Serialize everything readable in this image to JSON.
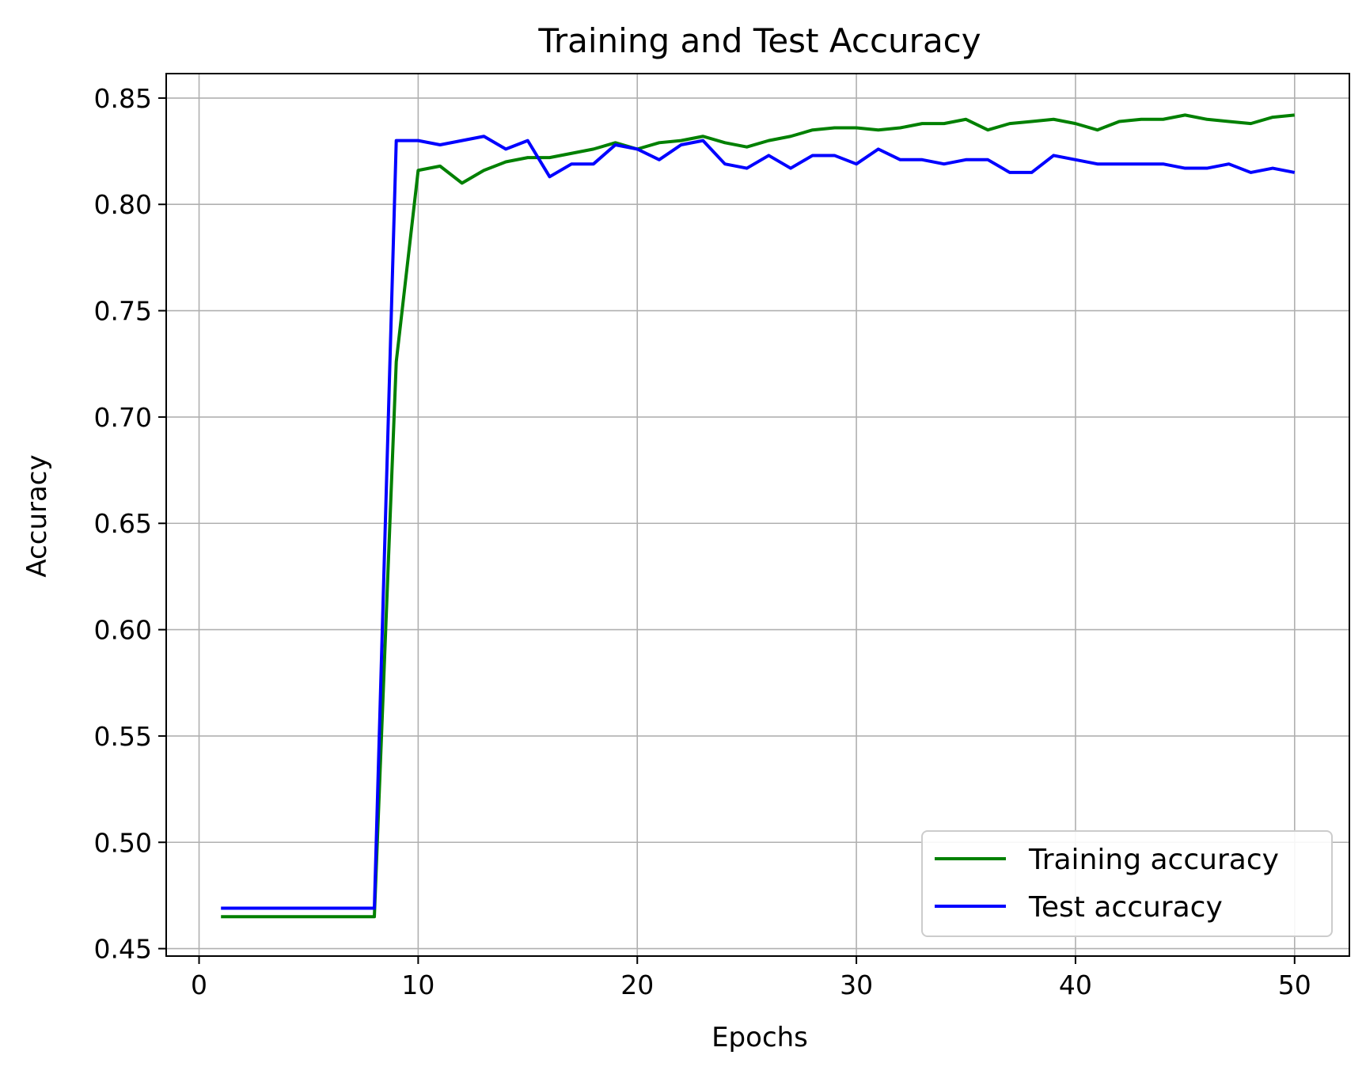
{
  "chart_data": {
    "type": "line",
    "title": "Training and Test Accuracy",
    "xlabel": "Epochs",
    "ylabel": "Accuracy",
    "xlim": [
      -1.5,
      52.5
    ],
    "ylim": [
      0.4465,
      0.8615
    ],
    "xticks": [
      0,
      10,
      20,
      30,
      40,
      50
    ],
    "xtick_labels": [
      "0",
      "10",
      "20",
      "30",
      "40",
      "50"
    ],
    "yticks": [
      0.45,
      0.5,
      0.55,
      0.6,
      0.65,
      0.7,
      0.75,
      0.8,
      0.85
    ],
    "ytick_labels": [
      "0.45",
      "0.50",
      "0.55",
      "0.60",
      "0.65",
      "0.70",
      "0.75",
      "0.80",
      "0.85"
    ],
    "grid": true,
    "legend_position": "lower-right",
    "x": [
      1,
      2,
      3,
      4,
      5,
      6,
      7,
      8,
      9,
      10,
      11,
      12,
      13,
      14,
      15,
      16,
      17,
      18,
      19,
      20,
      21,
      22,
      23,
      24,
      25,
      26,
      27,
      28,
      29,
      30,
      31,
      32,
      33,
      34,
      35,
      36,
      37,
      38,
      39,
      40,
      41,
      42,
      43,
      44,
      45,
      46,
      47,
      48,
      49,
      50
    ],
    "series": [
      {
        "name": "Training accuracy",
        "color": "#008000",
        "values": [
          0.465,
          0.465,
          0.465,
          0.465,
          0.465,
          0.465,
          0.465,
          0.465,
          0.726,
          0.816,
          0.818,
          0.81,
          0.816,
          0.82,
          0.822,
          0.822,
          0.824,
          0.826,
          0.829,
          0.826,
          0.829,
          0.83,
          0.832,
          0.829,
          0.827,
          0.83,
          0.832,
          0.835,
          0.836,
          0.836,
          0.835,
          0.836,
          0.838,
          0.838,
          0.84,
          0.835,
          0.838,
          0.839,
          0.84,
          0.838,
          0.835,
          0.839,
          0.84,
          0.84,
          0.842,
          0.84,
          0.839,
          0.838,
          0.841,
          0.842
        ]
      },
      {
        "name": "Test accuracy",
        "color": "#0000ff",
        "values": [
          0.469,
          0.469,
          0.469,
          0.469,
          0.469,
          0.469,
          0.469,
          0.469,
          0.83,
          0.83,
          0.828,
          0.83,
          0.832,
          0.826,
          0.83,
          0.813,
          0.819,
          0.819,
          0.828,
          0.826,
          0.821,
          0.828,
          0.83,
          0.819,
          0.817,
          0.823,
          0.817,
          0.823,
          0.823,
          0.819,
          0.826,
          0.821,
          0.821,
          0.819,
          0.821,
          0.821,
          0.815,
          0.815,
          0.823,
          0.821,
          0.819,
          0.819,
          0.819,
          0.819,
          0.817,
          0.817,
          0.819,
          0.815,
          0.817,
          0.815
        ]
      }
    ]
  }
}
